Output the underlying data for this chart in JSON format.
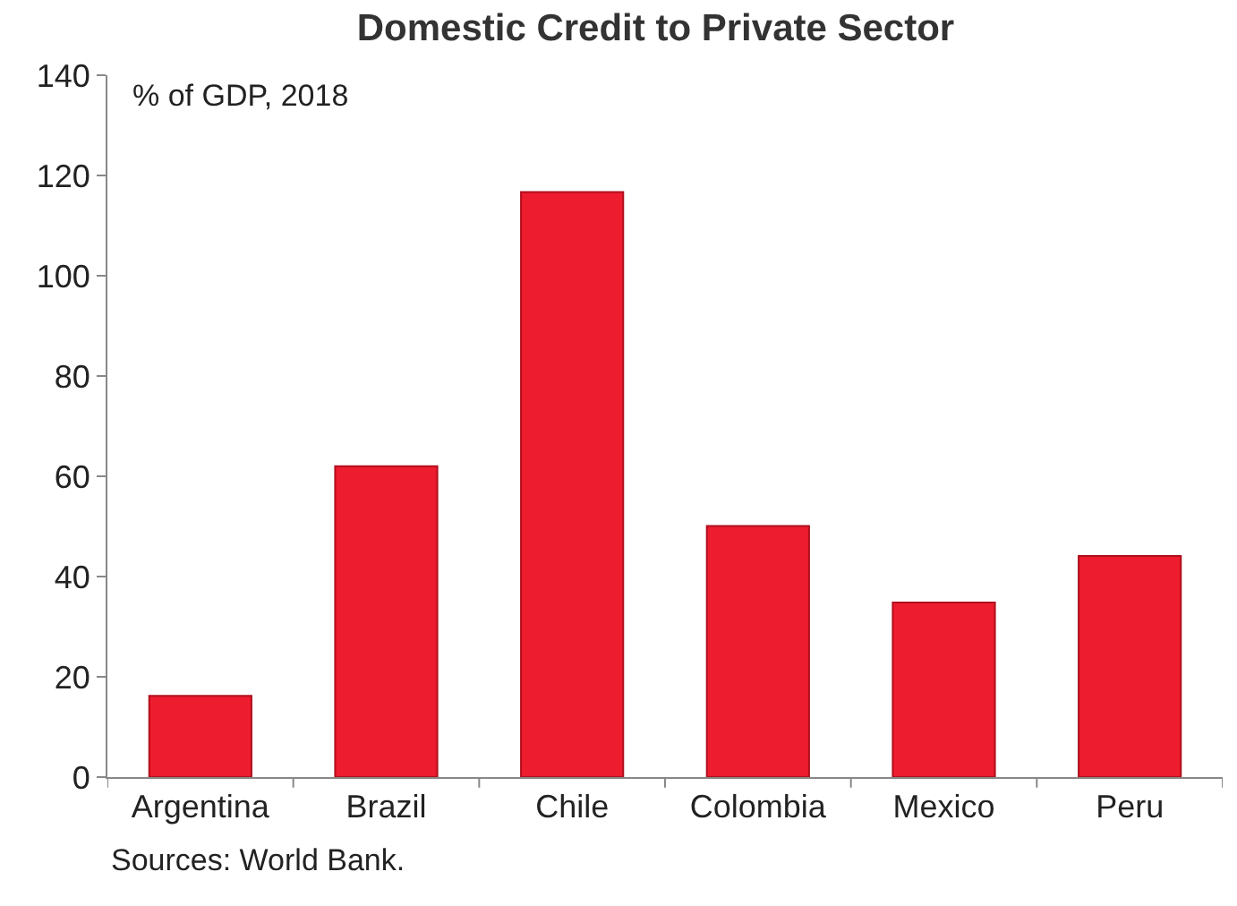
{
  "chart_data": {
    "type": "bar",
    "title": "Domestic Credit to Private Sector",
    "categories": [
      "Argentina",
      "Brazil",
      "Chile",
      "Colombia",
      "Mexico",
      "Peru"
    ],
    "values": [
      16.2,
      62,
      116.7,
      50.1,
      34.8,
      44.1
    ],
    "color": "#ed1c2e",
    "ylim": [
      0,
      140
    ],
    "yticks": [
      0,
      20,
      40,
      60,
      80,
      100,
      120,
      140
    ],
    "annotations": [
      "% of GDP, 2018",
      "Sources: World Bank."
    ]
  }
}
